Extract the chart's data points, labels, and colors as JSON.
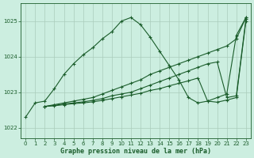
{
  "background_color": "#cceee0",
  "grid_color": "#aaccbb",
  "line_color": "#1a5c2a",
  "xlabel": "Graphe pression niveau de la mer (hPa)",
  "ylim": [
    1021.7,
    1025.5
  ],
  "xlim": [
    -0.5,
    23.5
  ],
  "yticks": [
    1022,
    1023,
    1024,
    1025
  ],
  "xticks": [
    0,
    1,
    2,
    3,
    4,
    5,
    6,
    7,
    8,
    9,
    10,
    11,
    12,
    13,
    14,
    15,
    16,
    17,
    18,
    19,
    20,
    21,
    22,
    23
  ],
  "series": [
    {
      "x": [
        0,
        1,
        2,
        3,
        4,
        5,
        6,
        7,
        8,
        9,
        10,
        11,
        12,
        13,
        14,
        15,
        16,
        17,
        18,
        19,
        20,
        21,
        22,
        23
      ],
      "y": [
        1022.3,
        1022.7,
        1022.75,
        1023.1,
        1023.5,
        1023.8,
        1024.05,
        1024.25,
        1024.5,
        1024.7,
        1025.0,
        1025.1,
        1024.9,
        1024.55,
        1024.15,
        1023.75,
        1023.35,
        1022.85,
        1022.7,
        1022.75,
        1022.85,
        1022.95,
        1024.6,
        1025.1
      ]
    },
    {
      "x": [
        2,
        3,
        4,
        5,
        6,
        7,
        8,
        9,
        10,
        11,
        12,
        13,
        14,
        15,
        16,
        17,
        18,
        19,
        20,
        21,
        22,
        23
      ],
      "y": [
        1022.6,
        1022.65,
        1022.7,
        1022.75,
        1022.8,
        1022.85,
        1022.95,
        1023.05,
        1023.15,
        1023.25,
        1023.35,
        1023.5,
        1023.6,
        1023.7,
        1023.8,
        1023.9,
        1024.0,
        1024.1,
        1024.2,
        1024.3,
        1024.5,
        1025.1
      ]
    },
    {
      "x": [
        2,
        3,
        4,
        5,
        6,
        7,
        8,
        9,
        10,
        11,
        12,
        13,
        14,
        15,
        16,
        17,
        18,
        19,
        20,
        21,
        22,
        23
      ],
      "y": [
        1022.6,
        1022.63,
        1022.67,
        1022.7,
        1022.73,
        1022.77,
        1022.82,
        1022.9,
        1022.95,
        1023.0,
        1023.1,
        1023.2,
        1023.3,
        1023.4,
        1023.5,
        1023.6,
        1023.7,
        1023.8,
        1023.85,
        1022.85,
        1022.9,
        1025.05
      ]
    },
    {
      "x": [
        2,
        3,
        4,
        5,
        6,
        7,
        8,
        9,
        10,
        11,
        12,
        13,
        14,
        15,
        16,
        17,
        18,
        19,
        20,
        21,
        22,
        23
      ],
      "y": [
        1022.6,
        1022.62,
        1022.65,
        1022.68,
        1022.7,
        1022.73,
        1022.77,
        1022.82,
        1022.87,
        1022.92,
        1022.97,
        1023.05,
        1023.1,
        1023.18,
        1023.25,
        1023.32,
        1023.4,
        1022.75,
        1022.72,
        1022.78,
        1022.85,
        1025.0
      ]
    }
  ]
}
